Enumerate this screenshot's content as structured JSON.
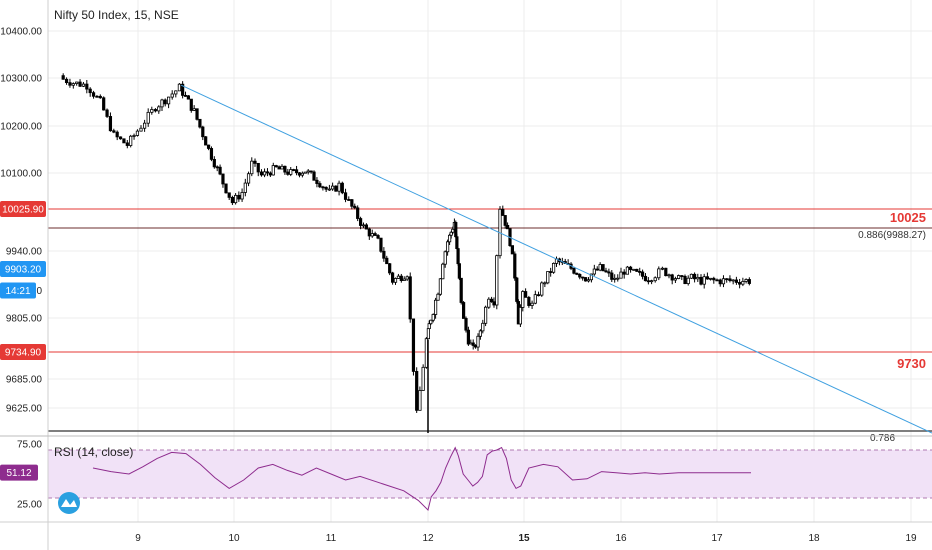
{
  "header": {
    "title": "Nifty 50 Index, 15, NSE"
  },
  "colors": {
    "up": "#ffffff",
    "down": "#000000",
    "wick": "#000000",
    "trend": "#3fa0e0",
    "level": "#e53935",
    "fib": "#6b2c2c",
    "rsi_line": "#8e2c8e",
    "rsi_band": "#f1e2f7",
    "rsi_band_line": "#b07ab0",
    "price_tag": "#2196f3",
    "time_tag": "#2196f3",
    "level_tag": "#e53935",
    "rsi_tag": "#8e2c8e",
    "grid": "#ececec"
  },
  "chart_data": [
    {
      "type": "candlestick",
      "title": "Nifty 50 Index, 15, NSE",
      "y_ticks": [
        "10400.00",
        "10300.00",
        "10200.00",
        "10100.00",
        "9940.00",
        "9805.00",
        "9685.00",
        "9625.00"
      ],
      "x_ticks": [
        "9",
        "10",
        "11",
        "12",
        "15",
        "16",
        "17",
        "18",
        "19"
      ],
      "grid": true,
      "current_price": "9903.20",
      "current_time": "14:21",
      "partial_tick_label": "0",
      "horizontal_levels": [
        {
          "value": 10025,
          "axis_tag": "10025.90",
          "label": "10025"
        },
        {
          "value": 9730,
          "axis_tag": "9734.90",
          "label": "9730"
        }
      ],
      "fib_levels": [
        {
          "value": 9988.27,
          "label": "0.886(9988.27)"
        },
        {
          "value": 9540,
          "label": "0.786"
        }
      ],
      "trendline": {
        "from": {
          "x": 9.45,
          "y": 10285
        },
        "to": {
          "x": 19.2,
          "y": 9540
        }
      },
      "close_series": {
        "x": [
          8.15,
          8.3,
          8.45,
          8.6,
          8.75,
          8.9,
          9.05,
          9.2,
          9.3,
          9.45,
          9.6,
          9.75,
          9.9,
          10.0,
          10.1,
          10.2,
          10.3,
          10.45,
          10.6,
          10.75,
          10.9,
          11.0,
          11.1,
          11.2,
          11.35,
          11.5,
          11.65,
          11.8,
          11.9,
          12.0,
          12.05,
          12.2,
          12.35,
          12.5,
          12.65,
          12.75,
          12.85,
          12.92,
          13.0,
          13.15,
          13.3,
          13.45,
          13.6,
          13.75,
          13.95,
          14.1,
          14.3,
          14.45,
          14.6,
          14.75,
          14.85,
          15.0,
          15.1,
          15.2,
          15.35,
          15.5,
          15.65,
          15.8,
          15.95,
          16.05,
          16.15,
          16.3,
          16.45,
          16.55,
          16.65,
          16.75,
          16.85,
          16.95,
          17.05,
          17.15,
          17.25,
          17.35
        ],
        "y": [
          10300,
          10290,
          10285,
          10250,
          10180,
          10160,
          10200,
          10240,
          10255,
          10280,
          10230,
          10150,
          10080,
          10040,
          10060,
          10120,
          10095,
          10110,
          10100,
          10105,
          10080,
          10060,
          10075,
          10040,
          9990,
          9960,
          9880,
          9895,
          9610,
          9760,
          9790,
          9820,
          9860,
          9920,
          9960,
          9980,
          10000,
          9940,
          9880,
          9800,
          9760,
          9740,
          9760,
          9800,
          9850,
          9840,
          10030,
          10000,
          9960,
          9890,
          9800,
          9850,
          9830,
          9870,
          9920,
          9905,
          9885,
          9905,
          9880,
          9900,
          9895,
          9885,
          9900,
          9890,
          9880,
          9885,
          9880,
          9880,
          9880,
          9880,
          9880,
          9880
        ]
      },
      "ylim": [
        9560,
        10450
      ],
      "xlim": [
        8.0,
        19.25
      ]
    },
    {
      "type": "line",
      "title": "RSI (14, close)",
      "y_ticks": [
        "75.00",
        "25.00"
      ],
      "current_value": "51.12",
      "band": [
        70,
        30
      ],
      "ylim": [
        14,
        80
      ],
      "x": [
        8.5,
        8.7,
        8.9,
        9.05,
        9.2,
        9.35,
        9.5,
        9.65,
        9.8,
        9.95,
        10.1,
        10.25,
        10.4,
        10.55,
        10.7,
        10.85,
        11.0,
        11.15,
        11.3,
        11.45,
        11.6,
        11.75,
        11.9,
        12.0,
        12.1,
        12.25,
        12.4,
        12.55,
        12.7,
        12.85,
        12.95,
        13.1,
        13.25,
        13.4,
        13.55,
        13.7,
        13.85,
        14.0,
        14.15,
        14.3,
        14.45,
        14.6,
        14.75,
        14.9,
        15.05,
        15.2,
        15.35,
        15.5,
        15.65,
        15.8,
        15.95,
        16.1,
        16.25,
        16.4,
        16.6,
        16.75,
        16.9,
        17.05,
        17.2,
        17.35
      ],
      "y": [
        55,
        52,
        50,
        56,
        63,
        68,
        67,
        58,
        47,
        38,
        45,
        55,
        58,
        53,
        49,
        55,
        50,
        45,
        48,
        44,
        40,
        36,
        28,
        20,
        31,
        36,
        43,
        55,
        64,
        72,
        65,
        50,
        45,
        40,
        43,
        48,
        66,
        69,
        70,
        72,
        63,
        45,
        38,
        40,
        55,
        58,
        56,
        45,
        46,
        52,
        51,
        50,
        51,
        50,
        51,
        51,
        51,
        51,
        51,
        51
      ]
    }
  ]
}
